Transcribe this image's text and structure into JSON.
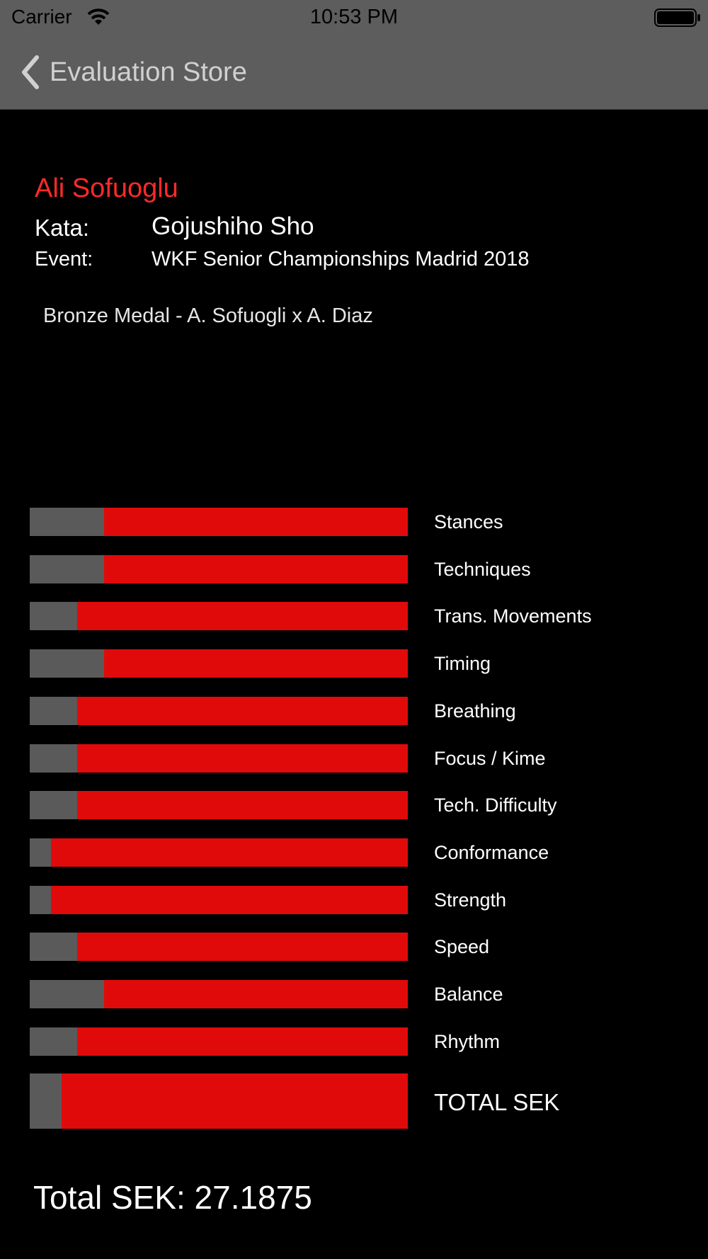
{
  "status_bar": {
    "carrier": "Carrier",
    "time": "10:53 PM",
    "wifi_icon": "wifi-icon",
    "battery_icon": "battery-icon"
  },
  "nav": {
    "back_label": "Evaluation Store",
    "back_icon": "chevron-left-icon"
  },
  "header": {
    "athlete_name": "Ali Sofuoglu",
    "kata_label": "Kata:",
    "kata_value": "Gojushiho Sho",
    "event_label": "Event:",
    "event_value": "WKF Senior Championships Madrid 2018",
    "note": "Bronze Medal - A. Sofuogli x A. Diaz"
  },
  "colors": {
    "score": "#e10a0a",
    "loss": "#5a5a5a",
    "name": "#ff2a2a",
    "nav_background": "#5d5d5d"
  },
  "criteria": [
    {
      "label": "Stances",
      "loss_fraction": 0.196
    },
    {
      "label": "Techniques",
      "loss_fraction": 0.196
    },
    {
      "label": "Trans. Movements",
      "loss_fraction": 0.126
    },
    {
      "label": "Timing",
      "loss_fraction": 0.196
    },
    {
      "label": "Breathing",
      "loss_fraction": 0.126
    },
    {
      "label": "Focus / Kime",
      "loss_fraction": 0.126
    },
    {
      "label": "Tech. Difficulty",
      "loss_fraction": 0.126
    },
    {
      "label": "Conformance",
      "loss_fraction": 0.056
    },
    {
      "label": "Strength",
      "loss_fraction": 0.056
    },
    {
      "label": "Speed",
      "loss_fraction": 0.126
    },
    {
      "label": "Balance",
      "loss_fraction": 0.196
    },
    {
      "label": "Rhythm",
      "loss_fraction": 0.126
    }
  ],
  "total": {
    "label": "TOTAL SEK",
    "loss_fraction": 0.084,
    "summary": "Total SEK: 27.1875"
  }
}
